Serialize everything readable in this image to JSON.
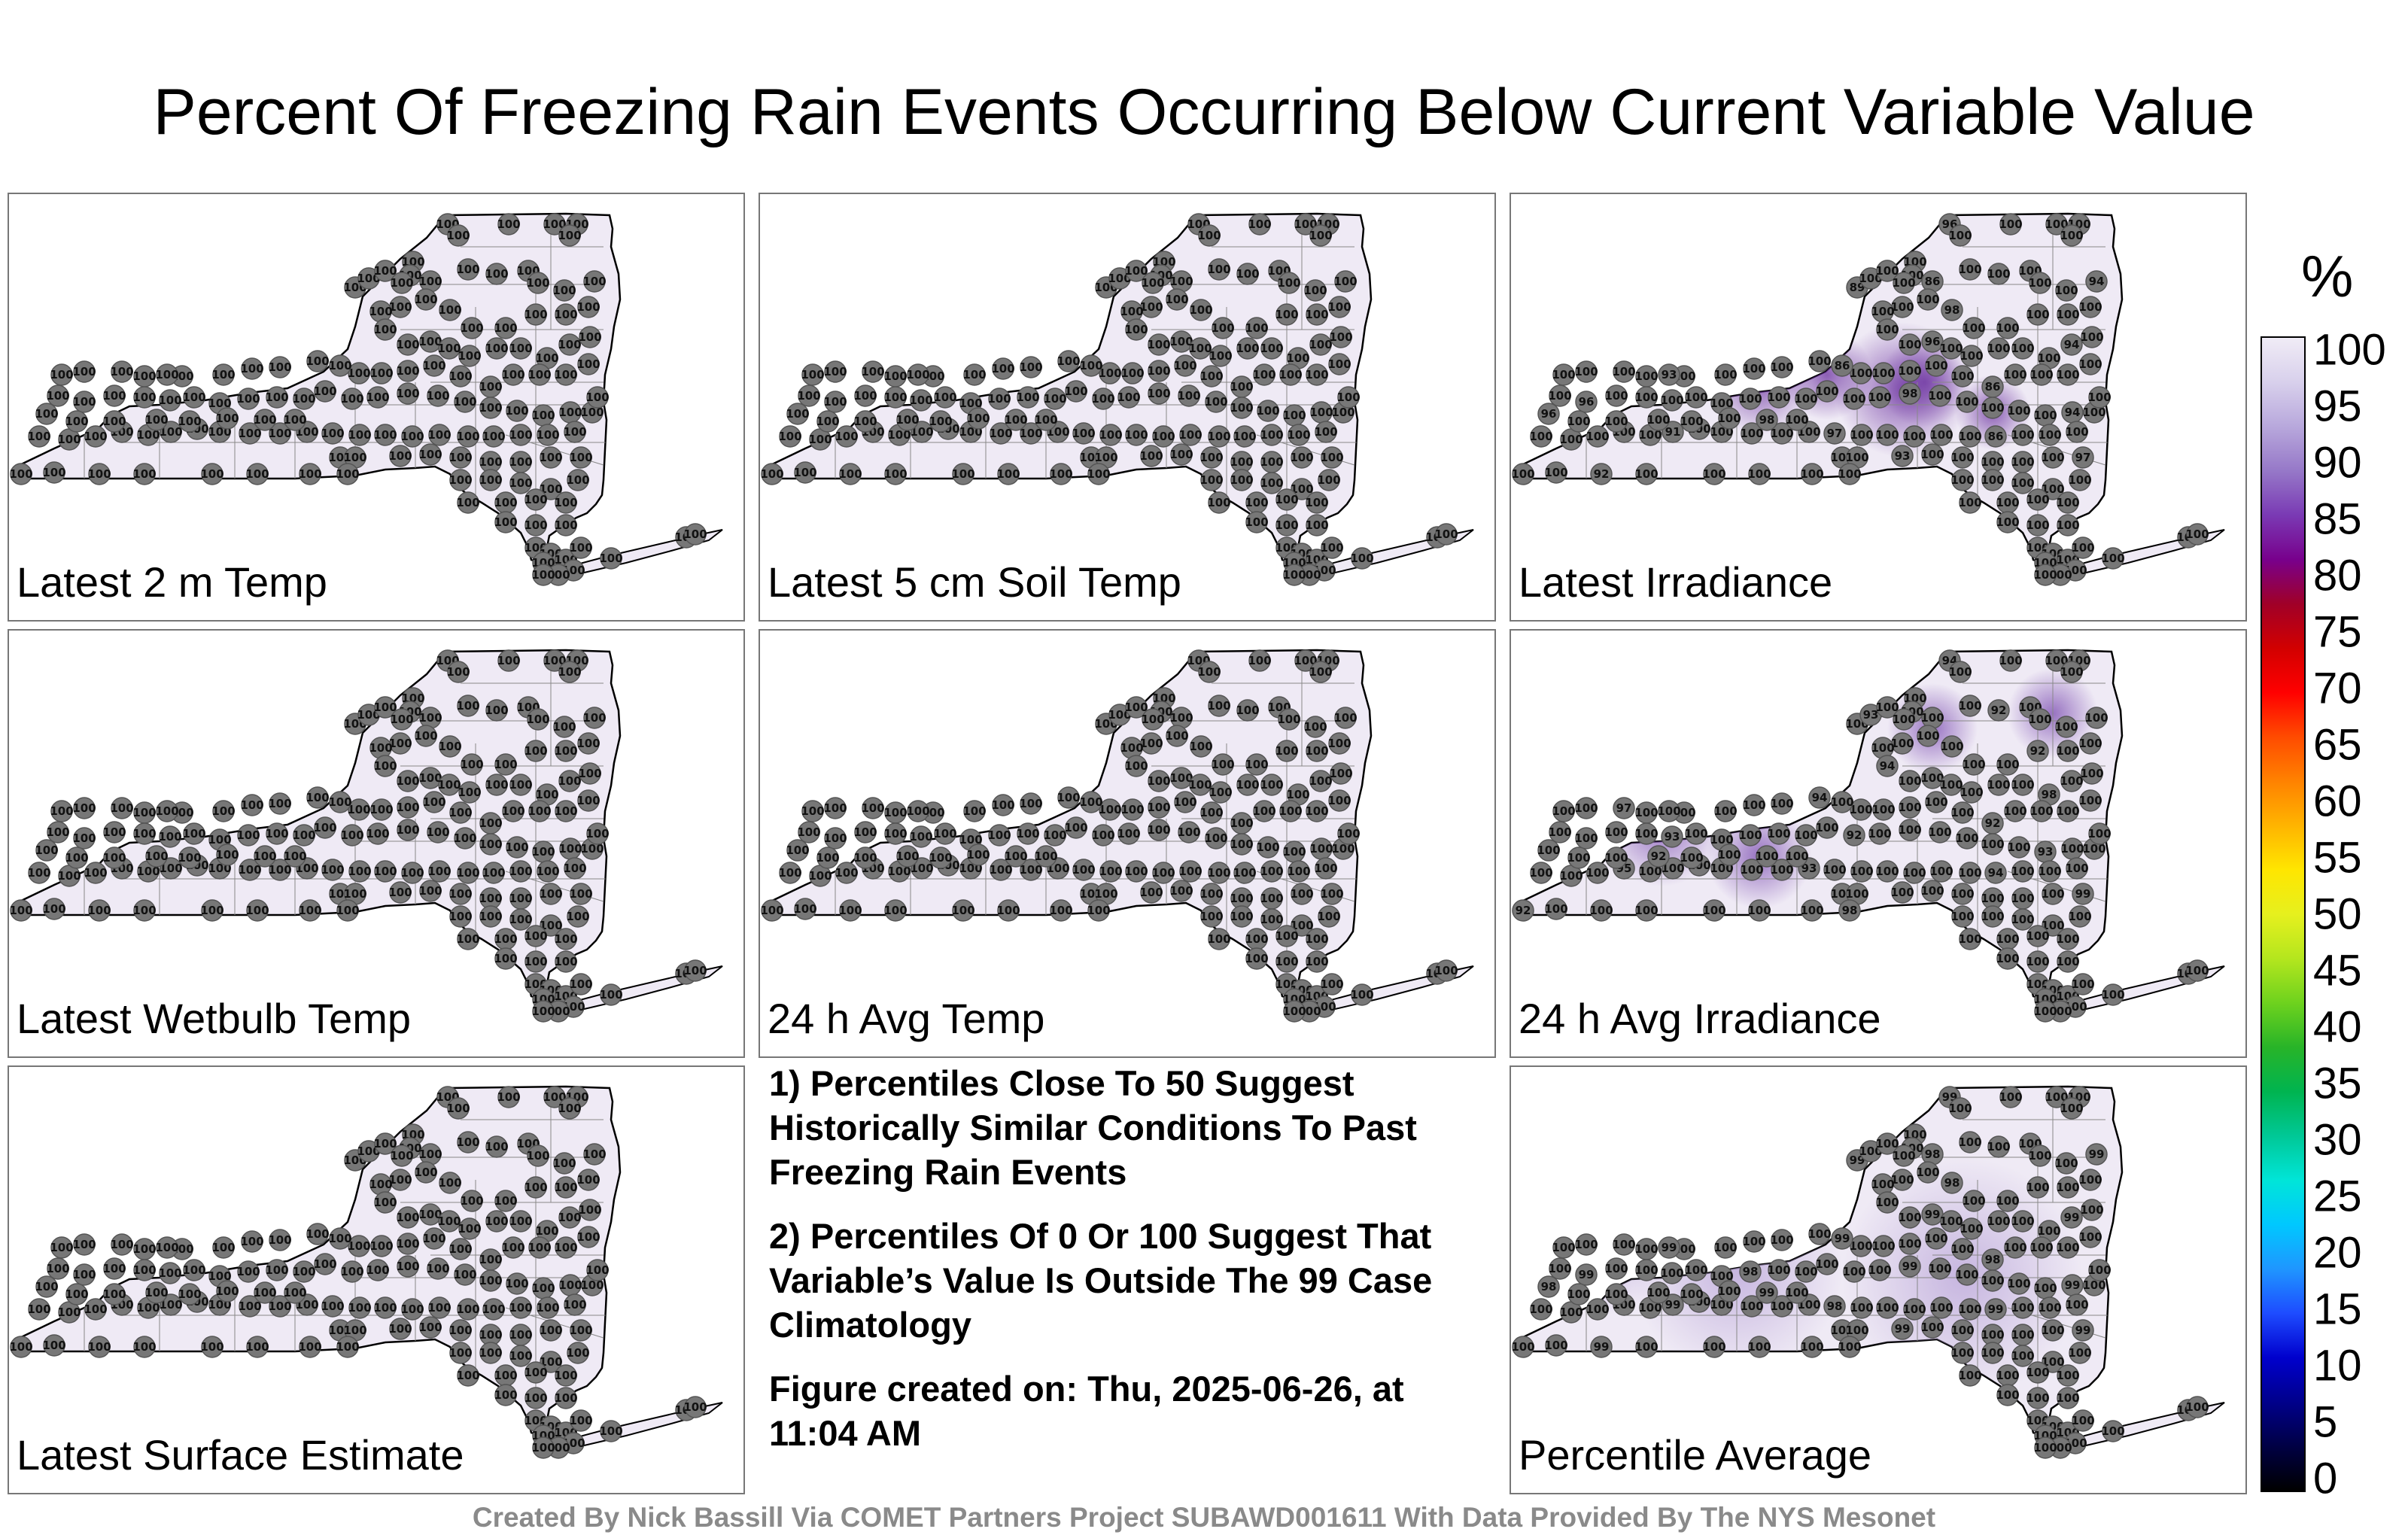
{
  "title": "Percent Of Freezing Rain Events Occurring Below Current Variable Value",
  "panels": [
    {
      "label": "Latest 2 m Temp",
      "values": []
    },
    {
      "label": "Latest 5 cm Soil Temp",
      "values": []
    },
    {
      "label": "Latest Irradiance",
      "values": [
        96,
        89,
        86,
        94,
        98,
        96,
        94,
        86,
        86,
        93,
        96,
        100,
        98,
        94,
        86,
        97,
        91,
        96,
        98,
        92,
        93,
        97
      ]
    },
    {
      "label": "Latest Wetbulb Temp",
      "values": []
    },
    {
      "label": "24 h Avg Temp",
      "values": []
    },
    {
      "label": "24 h Avg Irradiance",
      "values": [
        94,
        93,
        92,
        92,
        94,
        98,
        92,
        94,
        97,
        93,
        92,
        93,
        94,
        93,
        95,
        92,
        92,
        98,
        99
      ]
    },
    {
      "label": "Latest Surface Estimate",
      "values": []
    },
    {
      "label": "Percentile Average",
      "values": [
        99,
        99,
        98,
        99,
        98,
        99,
        99,
        98,
        99,
        99,
        99,
        98,
        99,
        99,
        99,
        98,
        99,
        98,
        99,
        99,
        99,
        99
      ]
    }
  ],
  "notes": [
    "1) Percentiles Close To 50 Suggest Historically Similar Conditions To Past Freezing Rain Events",
    "2) Percentiles Of 0 Or 100 Suggest That Variable’s Value Is Outside The 99 Case Climatology",
    "Figure created on: Thu, 2025-06-26, at 11:04 AM"
  ],
  "footer": "Created By Nick Bassill Via COMET Partners Project SUBAWD001611 With Data Provided By The NYS Mesonet",
  "colorbar": {
    "unit": "%",
    "ticks": [
      "100",
      "95",
      "90",
      "85",
      "80",
      "75",
      "70",
      "65",
      "60",
      "55",
      "50",
      "45",
      "40",
      "35",
      "30",
      "25",
      "20",
      "15",
      "10",
      "5",
      "0"
    ],
    "colors": [
      "#000000",
      "#000044",
      "#00008b",
      "#0000cd",
      "#1e4cff",
      "#1f96ff",
      "#00c8ff",
      "#00e5d8",
      "#00c896",
      "#00b450",
      "#28b428",
      "#6ed21e",
      "#b4e61e",
      "#e6f01e",
      "#ffe600",
      "#ffb400",
      "#ff8200",
      "#ff4b00",
      "#ff0000",
      "#d20000",
      "#a00028",
      "#78008c",
      "#7a3ab4",
      "#9678c8",
      "#b8a8dc",
      "#d8d0ec",
      "#f0ecf6"
    ]
  },
  "station_value_default": "100"
}
